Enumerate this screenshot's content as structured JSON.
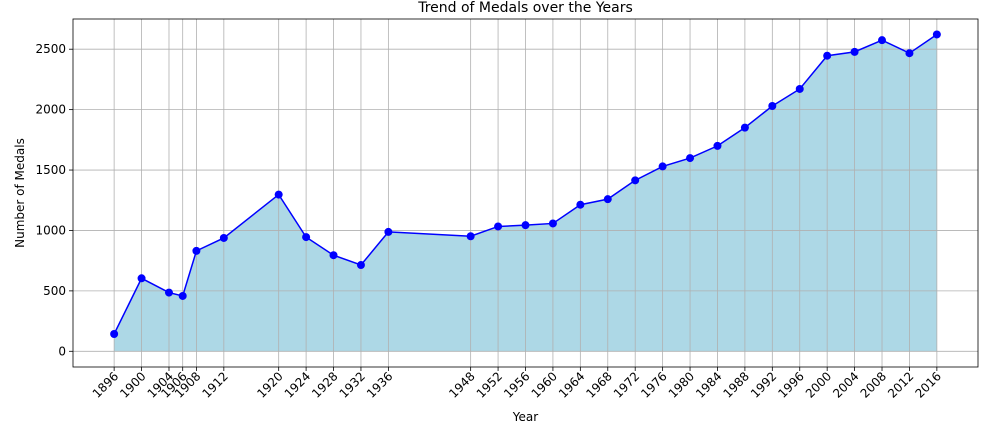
{
  "chart_data": {
    "type": "area",
    "title": "Trend of Medals over the Years",
    "xlabel": "Year",
    "ylabel": "Number of Medals",
    "x": [
      1896,
      1900,
      1904,
      1906,
      1908,
      1912,
      1920,
      1924,
      1928,
      1932,
      1936,
      1948,
      1952,
      1956,
      1960,
      1964,
      1968,
      1972,
      1976,
      1980,
      1984,
      1988,
      1992,
      1996,
      2000,
      2004,
      2008,
      2012,
      2016
    ],
    "series": [
      {
        "values": [
          143,
          604,
          486,
          458,
          831,
          938,
          1297,
          945,
          795,
          714,
          988,
          952,
          1033,
          1044,
          1058,
          1213,
          1259,
          1415,
          1530,
          1599,
          1700,
          1851,
          2030,
          2171,
          2446,
          2478,
          2575,
          2467,
          2622
        ]
      }
    ],
    "x_ticks": [
      "1896",
      "1900",
      "1904",
      "1906",
      "1908",
      "1912",
      "1920",
      "1924",
      "1928",
      "1932",
      "1936",
      "1948",
      "1952",
      "1956",
      "1960",
      "1964",
      "1968",
      "1972",
      "1976",
      "1980",
      "1984",
      "1988",
      "1992",
      "1996",
      "2000",
      "2004",
      "2008",
      "2012",
      "2016"
    ],
    "y_ticks": [
      "0",
      "500",
      "1000",
      "1500",
      "2000",
      "2500"
    ],
    "xlim": [
      1890,
      2022
    ],
    "ylim": [
      -130,
      2750
    ],
    "grid": true,
    "colors": {
      "line": "#0000ff",
      "fill": "#add8e6",
      "grid": "#b0b0b0"
    }
  }
}
